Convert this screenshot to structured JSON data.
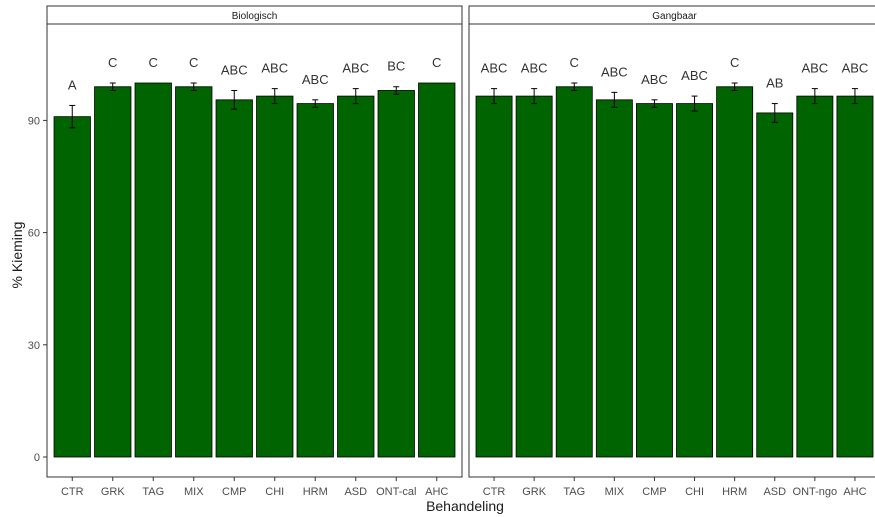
{
  "chart_data": {
    "type": "bar",
    "xlabel": "Behandeling",
    "ylabel": "% Kieming",
    "ylim": [
      0,
      100
    ],
    "yticks": [
      0,
      30,
      60,
      90
    ],
    "grid": false,
    "bar_color": "#006400",
    "bar_stroke": "#000000",
    "errorbar_color": "#000000",
    "panels": [
      {
        "title": "Biologisch",
        "categories": [
          "CTR",
          "GRK",
          "TAG",
          "MIX",
          "CMP",
          "CHI",
          "HRM",
          "ASD",
          "ONT-cal",
          "AHC"
        ],
        "values": [
          91,
          99,
          100,
          99,
          95.5,
          96.5,
          94.5,
          96.5,
          98,
          100
        ],
        "error": [
          3,
          1,
          0,
          1,
          2.5,
          2,
          1,
          2,
          1,
          0
        ],
        "letters": [
          "A",
          "C",
          "C",
          "C",
          "ABC",
          "ABC",
          "ABC",
          "ABC",
          "BC",
          "C"
        ]
      },
      {
        "title": "Gangbaar",
        "categories": [
          "CTR",
          "GRK",
          "TAG",
          "MIX",
          "CMP",
          "CHI",
          "HRM",
          "ASD",
          "ONT-ngo",
          "AHC"
        ],
        "values": [
          96.5,
          96.5,
          99,
          95.5,
          94.5,
          94.5,
          99,
          92,
          96.5,
          96.5
        ],
        "error": [
          2,
          2,
          1,
          2,
          1,
          2,
          1,
          2.5,
          2,
          2
        ],
        "letters": [
          "ABC",
          "ABC",
          "C",
          "ABC",
          "ABC",
          "ABC",
          "C",
          "AB",
          "ABC",
          "ABC"
        ]
      }
    ]
  }
}
